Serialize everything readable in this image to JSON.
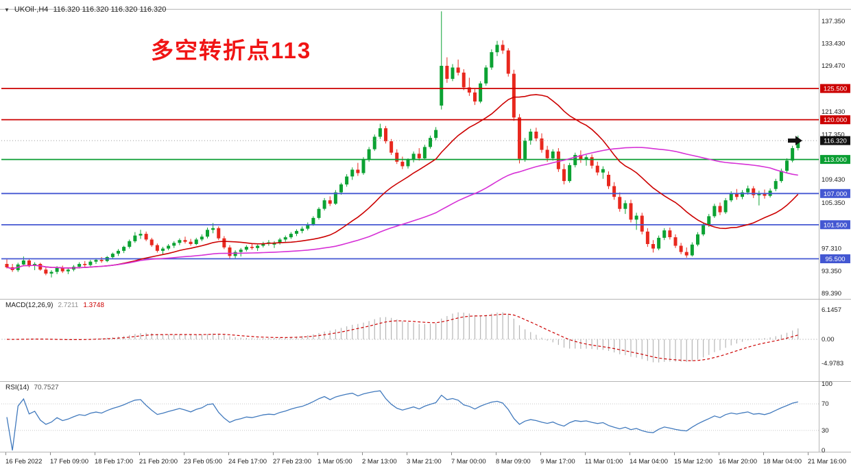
{
  "header": {
    "symbol": "UKOil·,H4",
    "quotes": "116.320 116.320 116.320 116.320"
  },
  "annotation": {
    "text": "多空转折点113",
    "color": "#f01414"
  },
  "chart_data": {
    "type": "candlestick",
    "symbol": "UKOil",
    "timeframe": "H4",
    "colors": {
      "up": "#0ca233",
      "down": "#e8281e",
      "ma_fast": "#cc0000",
      "ma_slow": "#d630d6",
      "macd_hist": "#b5b5b5",
      "macd_signal": "#cc0000",
      "rsi": "#4079bd",
      "axis_text": "#1a1a1a",
      "line_red": "#cc0000",
      "line_green": "#0a9e32",
      "line_blue": "#4357d2"
    },
    "price_axis_ticks": [
      {
        "v": 137.35,
        "t": "137.350"
      },
      {
        "v": 133.43,
        "t": "133.430"
      },
      {
        "v": 129.47,
        "t": "129.470"
      },
      {
        "v": 121.43,
        "t": "121.430"
      },
      {
        "v": 117.35,
        "t": "117.350"
      },
      {
        "v": 109.43,
        "t": "109.430"
      },
      {
        "v": 105.35,
        "t": "105.350"
      },
      {
        "v": 97.31,
        "t": "97.310"
      },
      {
        "v": 93.35,
        "t": "93.350"
      },
      {
        "v": 89.39,
        "t": "89.390"
      }
    ],
    "hlines": [
      {
        "price": 125.5,
        "label": "125.500",
        "color": "#cc0000"
      },
      {
        "price": 120.0,
        "label": "120.000",
        "color": "#cc0000"
      },
      {
        "price": 113.0,
        "label": "113.000",
        "color": "#0a9e32"
      },
      {
        "price": 107.0,
        "label": "107.000",
        "color": "#4357d2"
      },
      {
        "price": 101.5,
        "label": "101.500",
        "color": "#4357d2"
      },
      {
        "price": 95.5,
        "label": "95.500",
        "color": "#4357d2"
      }
    ],
    "current_price": {
      "value": 116.32,
      "label": "116.320",
      "color": "#111111"
    },
    "time_labels": [
      "16 Feb 2022",
      "17 Feb 09:00",
      "18 Feb 17:00",
      "21 Feb 20:00",
      "23 Feb 05:00",
      "24 Feb 17:00",
      "27 Feb 23:00",
      "1 Mar 05:00",
      "2 Mar 13:00",
      "3 Mar 21:00",
      "7 Mar 00:00",
      "8 Mar 09:00",
      "9 Mar 17:00",
      "11 Mar 01:00",
      "14 Mar 04:00",
      "15 Mar 12:00",
      "16 Mar 20:00",
      "18 Mar 04:00",
      "21 Mar 16:00"
    ],
    "macd": {
      "label": "MACD(12,26,9)",
      "fast": 12,
      "slow": 26,
      "signal": 9,
      "value_main": "2.7211",
      "value_signal": "1.3748",
      "axis_labels": [
        {
          "v": 6.1457,
          "t": "6.1457"
        },
        {
          "v": 0,
          "t": "0.00"
        },
        {
          "v": -4.9783,
          "t": "-4.9783"
        }
      ]
    },
    "rsi": {
      "label": "RSI(14)",
      "period": 14,
      "value": "70.7527",
      "levels": [
        70,
        30
      ],
      "axis_labels": [
        {
          "v": 100,
          "t": "100"
        },
        {
          "v": 70,
          "t": "70"
        },
        {
          "v": 30,
          "t": "30"
        },
        {
          "v": 0,
          "t": "0"
        }
      ]
    },
    "candles": [
      [
        94.6,
        95.4,
        93.8,
        94.0
      ],
      [
        94.0,
        94.6,
        93.2,
        93.5
      ],
      [
        93.5,
        94.8,
        93.2,
        94.5
      ],
      [
        94.5,
        95.9,
        94.2,
        95.2
      ],
      [
        95.2,
        95.6,
        94.0,
        94.3
      ],
      [
        94.3,
        94.9,
        93.5,
        94.6
      ],
      [
        94.6,
        94.8,
        93.4,
        93.6
      ],
      [
        93.6,
        94.0,
        92.6,
        92.9
      ],
      [
        92.9,
        93.5,
        92.2,
        93.2
      ],
      [
        93.2,
        94.2,
        92.8,
        93.9
      ],
      [
        93.9,
        94.3,
        93.0,
        93.3
      ],
      [
        93.3,
        93.9,
        92.8,
        93.6
      ],
      [
        93.6,
        94.4,
        93.3,
        94.1
      ],
      [
        94.1,
        94.9,
        93.8,
        94.6
      ],
      [
        94.6,
        95.1,
        94.0,
        94.4
      ],
      [
        94.4,
        95.3,
        94.2,
        95.0
      ],
      [
        95.0,
        95.6,
        94.6,
        95.3
      ],
      [
        95.3,
        95.8,
        94.8,
        95.1
      ],
      [
        95.1,
        96.0,
        94.9,
        95.8
      ],
      [
        95.8,
        96.6,
        95.5,
        96.4
      ],
      [
        96.4,
        97.2,
        96.0,
        96.9
      ],
      [
        96.9,
        97.8,
        96.5,
        97.6
      ],
      [
        97.6,
        98.9,
        97.3,
        98.6
      ],
      [
        98.6,
        100.2,
        98.3,
        99.6
      ],
      [
        99.6,
        100.6,
        99.0,
        99.9
      ],
      [
        99.9,
        100.3,
        98.6,
        98.9
      ],
      [
        98.9,
        99.2,
        97.6,
        97.9
      ],
      [
        97.9,
        98.2,
        96.6,
        96.9
      ],
      [
        96.9,
        97.6,
        96.3,
        97.3
      ],
      [
        97.3,
        98.1,
        97.0,
        97.8
      ],
      [
        97.8,
        98.6,
        97.4,
        98.3
      ],
      [
        98.3,
        99.1,
        97.9,
        98.8
      ],
      [
        98.8,
        99.4,
        98.2,
        98.5
      ],
      [
        98.5,
        99.0,
        97.8,
        98.1
      ],
      [
        98.1,
        99.2,
        97.9,
        98.9
      ],
      [
        98.9,
        99.8,
        98.6,
        99.4
      ],
      [
        99.4,
        101.0,
        99.1,
        100.6
      ],
      [
        100.6,
        101.8,
        100.0,
        100.9
      ],
      [
        100.9,
        101.2,
        98.8,
        99.1
      ],
      [
        99.1,
        99.5,
        97.2,
        97.5
      ],
      [
        97.5,
        97.9,
        95.4,
        96.0
      ],
      [
        96.0,
        97.0,
        95.6,
        96.7
      ],
      [
        96.7,
        97.4,
        95.9,
        97.1
      ],
      [
        97.1,
        97.9,
        96.8,
        97.6
      ],
      [
        97.6,
        98.2,
        97.1,
        97.4
      ],
      [
        97.4,
        98.0,
        96.9,
        97.8
      ],
      [
        97.8,
        98.5,
        97.5,
        98.2
      ],
      [
        98.2,
        98.8,
        97.8,
        98.4
      ],
      [
        98.0,
        98.6,
        97.4,
        98.3
      ],
      [
        98.3,
        99.2,
        98.0,
        98.9
      ],
      [
        98.9,
        99.6,
        98.5,
        99.3
      ],
      [
        99.3,
        100.2,
        99.0,
        99.9
      ],
      [
        99.9,
        100.7,
        99.5,
        100.4
      ],
      [
        100.4,
        101.2,
        100.0,
        100.8
      ],
      [
        100.8,
        101.9,
        100.5,
        101.6
      ],
      [
        101.6,
        103.0,
        101.3,
        102.7
      ],
      [
        102.7,
        104.6,
        102.4,
        104.3
      ],
      [
        104.3,
        106.2,
        104.0,
        105.8
      ],
      [
        105.8,
        106.5,
        104.8,
        105.2
      ],
      [
        105.2,
        107.6,
        105.0,
        107.2
      ],
      [
        107.2,
        108.9,
        106.8,
        108.6
      ],
      [
        108.6,
        110.4,
        108.2,
        110.0
      ],
      [
        110.0,
        111.6,
        109.4,
        111.2
      ],
      [
        111.2,
        112.4,
        110.1,
        110.6
      ],
      [
        110.6,
        113.4,
        110.3,
        113.0
      ],
      [
        113.0,
        115.2,
        112.6,
        114.8
      ],
      [
        114.8,
        117.4,
        114.5,
        117.0
      ],
      [
        117.0,
        119.3,
        116.6,
        118.5
      ],
      [
        118.5,
        118.9,
        115.8,
        116.2
      ],
      [
        116.2,
        116.6,
        113.8,
        114.2
      ],
      [
        114.2,
        114.8,
        112.2,
        112.6
      ],
      [
        112.6,
        113.5,
        111.3,
        111.8
      ],
      [
        111.8,
        113.2,
        111.4,
        112.9
      ],
      [
        112.9,
        114.4,
        112.5,
        114.0
      ],
      [
        114.0,
        115.0,
        112.8,
        113.2
      ],
      [
        113.2,
        115.6,
        113.0,
        115.2
      ],
      [
        115.2,
        117.2,
        114.9,
        116.8
      ],
      [
        116.8,
        118.7,
        116.4,
        118.2
      ],
      [
        122.5,
        139.1,
        121.8,
        129.5
      ],
      [
        129.5,
        131.0,
        126.5,
        127.2
      ],
      [
        127.2,
        129.8,
        126.8,
        129.2
      ],
      [
        129.2,
        130.6,
        127.8,
        128.3
      ],
      [
        128.3,
        128.9,
        125.2,
        125.7
      ],
      [
        125.7,
        127.4,
        124.2,
        124.8
      ],
      [
        124.8,
        125.4,
        122.6,
        123.2
      ],
      [
        123.2,
        126.8,
        122.9,
        126.4
      ],
      [
        126.4,
        129.6,
        126.0,
        129.2
      ],
      [
        129.2,
        132.4,
        128.8,
        131.9
      ],
      [
        131.9,
        133.9,
        131.2,
        133.2
      ],
      [
        133.2,
        134.0,
        131.6,
        132.2
      ],
      [
        132.2,
        132.6,
        127.6,
        128.1
      ],
      [
        128.1,
        128.8,
        119.8,
        120.4
      ],
      [
        120.4,
        121.0,
        112.3,
        113.1
      ],
      [
        113.1,
        116.8,
        112.6,
        116.3
      ],
      [
        116.3,
        118.4,
        115.6,
        117.9
      ],
      [
        117.9,
        118.6,
        116.2,
        116.7
      ],
      [
        116.7,
        117.6,
        114.2,
        114.7
      ],
      [
        114.7,
        115.4,
        112.6,
        113.2
      ],
      [
        113.2,
        114.8,
        112.8,
        114.4
      ],
      [
        114.4,
        115.0,
        110.8,
        111.3
      ],
      [
        111.3,
        112.2,
        108.6,
        109.2
      ],
      [
        109.2,
        112.4,
        108.9,
        112.0
      ],
      [
        112.0,
        114.2,
        111.6,
        113.8
      ],
      [
        113.8,
        114.6,
        112.4,
        112.9
      ],
      [
        112.9,
        113.8,
        111.9,
        113.4
      ],
      [
        113.4,
        113.9,
        111.4,
        111.9
      ],
      [
        111.9,
        112.6,
        110.2,
        110.7
      ],
      [
        110.7,
        111.8,
        109.6,
        111.3
      ],
      [
        110.3,
        110.9,
        107.8,
        108.3
      ],
      [
        108.3,
        109.0,
        105.9,
        106.4
      ],
      [
        106.4,
        107.2,
        103.8,
        104.3
      ],
      [
        104.3,
        105.8,
        103.4,
        105.3
      ],
      [
        105.3,
        105.9,
        101.9,
        102.4
      ],
      [
        102.4,
        103.6,
        100.6,
        103.1
      ],
      [
        103.1,
        103.6,
        99.8,
        100.3
      ],
      [
        100.3,
        100.9,
        97.6,
        98.1
      ],
      [
        98.1,
        98.8,
        96.6,
        97.3
      ],
      [
        97.3,
        99.6,
        97.0,
        99.2
      ],
      [
        99.2,
        100.9,
        98.8,
        100.5
      ],
      [
        100.5,
        101.0,
        98.9,
        99.3
      ],
      [
        99.3,
        99.8,
        97.4,
        97.8
      ],
      [
        97.8,
        98.3,
        96.3,
        96.7
      ],
      [
        96.7,
        97.5,
        95.7,
        96.1
      ],
      [
        96.1,
        98.4,
        95.9,
        98.0
      ],
      [
        98.0,
        100.2,
        97.7,
        99.8
      ],
      [
        99.8,
        101.8,
        99.5,
        101.4
      ],
      [
        101.4,
        103.4,
        101.1,
        103.0
      ],
      [
        103.0,
        105.2,
        102.7,
        104.8
      ],
      [
        104.8,
        105.4,
        103.2,
        103.7
      ],
      [
        103.7,
        106.2,
        103.4,
        105.8
      ],
      [
        105.8,
        107.4,
        105.5,
        107.0
      ],
      [
        107.0,
        107.8,
        105.9,
        106.4
      ],
      [
        106.4,
        107.6,
        106.0,
        107.2
      ],
      [
        107.2,
        108.4,
        106.8,
        107.9
      ],
      [
        107.9,
        108.3,
        106.2,
        106.7
      ],
      [
        106.7,
        107.5,
        104.9,
        107.1
      ],
      [
        107.1,
        107.7,
        106.1,
        106.6
      ],
      [
        106.6,
        107.9,
        106.3,
        107.5
      ],
      [
        107.8,
        109.6,
        107.4,
        109.2
      ],
      [
        109.2,
        111.4,
        108.9,
        111.0
      ],
      [
        111.0,
        113.2,
        110.7,
        112.8
      ],
      [
        112.8,
        115.4,
        112.5,
        115.0
      ],
      [
        115.0,
        117.2,
        114.6,
        116.32
      ]
    ]
  }
}
